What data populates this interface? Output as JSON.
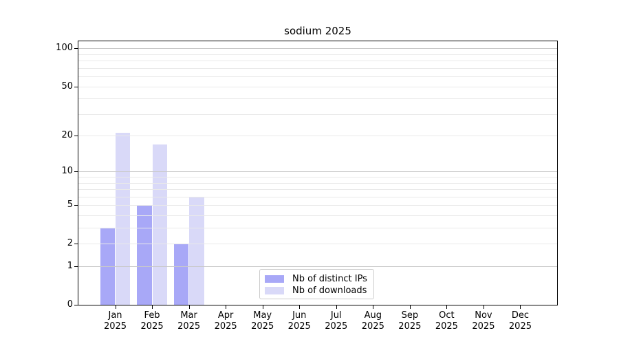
{
  "chart_data": {
    "type": "bar",
    "title": "sodium 2025",
    "categories": [
      "Jan",
      "Feb",
      "Mar",
      "Apr",
      "May",
      "Jun",
      "Jul",
      "Aug",
      "Sep",
      "Oct",
      "Nov",
      "Dec"
    ],
    "category_year": "2025",
    "series": [
      {
        "name": "Nb of distinct IPs",
        "color": "#a8a8f7",
        "values": [
          3,
          5,
          2,
          0,
          0,
          0,
          0,
          0,
          0,
          0,
          0,
          0
        ]
      },
      {
        "name": "Nb of downloads",
        "color": "#d9d9f8",
        "values": [
          21,
          17,
          6,
          0,
          0,
          0,
          0,
          0,
          0,
          0,
          0,
          0
        ]
      }
    ],
    "xlabel": "",
    "ylabel": "",
    "y_scale": "log1p",
    "ylim": [
      0,
      114
    ],
    "y_ticks": [
      0,
      1,
      2,
      5,
      10,
      20,
      50,
      100
    ],
    "y_major_gridlines": [
      1,
      10,
      100
    ],
    "y_minor_gridlines": [
      2,
      3,
      4,
      5,
      6,
      7,
      8,
      9,
      20,
      30,
      40,
      50,
      60,
      70,
      80,
      90
    ],
    "grid": true,
    "legend_position": "lower center",
    "colors": {
      "axis": "#000000",
      "text": "#000000",
      "major_grid": "#c9c9c9",
      "minor_grid": "#e9e9e9",
      "legend_border": "#cccccc",
      "background": "#ffffff"
    }
  }
}
